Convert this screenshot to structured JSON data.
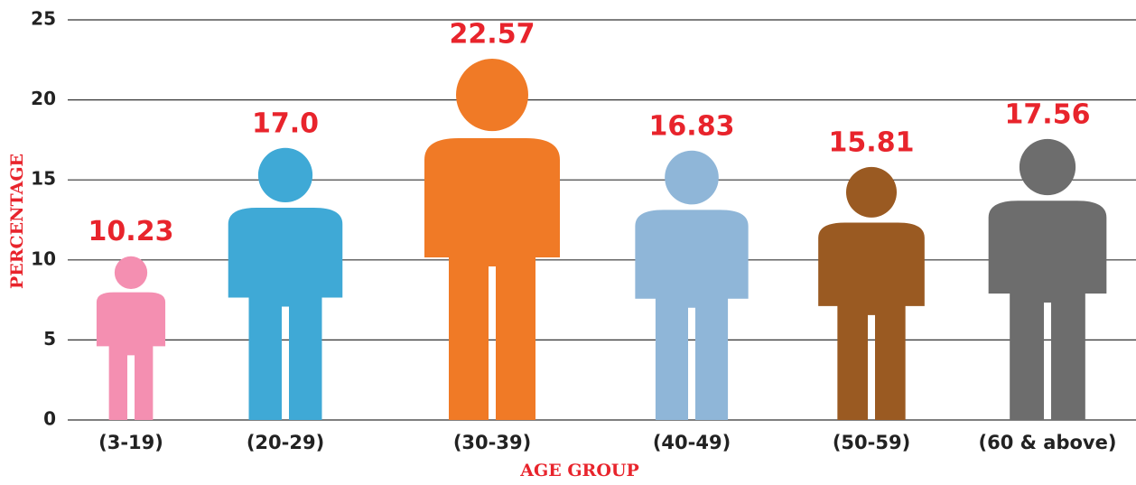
{
  "chart_data": {
    "type": "pictograph",
    "x_label": "AGE GROUP",
    "y_label": "PERCENTAGE",
    "categories": [
      "(3-19)",
      "(20-29)",
      "(30-39)",
      "(40-49)",
      "(50-59)",
      "(60 & above)"
    ],
    "values": [
      10.23,
      17.0,
      22.57,
      16.83,
      15.81,
      17.56
    ],
    "value_labels": [
      "10.23",
      "17.0",
      "22.57",
      "16.83",
      "15.81",
      "17.56"
    ],
    "colors": [
      "#f48fb1",
      "#3fa9d6",
      "#f07a26",
      "#8fb6d8",
      "#9a5a22",
      "#6d6d6d"
    ],
    "ylim": [
      0,
      25
    ],
    "yticks": [
      0,
      5,
      10,
      15,
      20,
      25
    ],
    "grid": true
  }
}
